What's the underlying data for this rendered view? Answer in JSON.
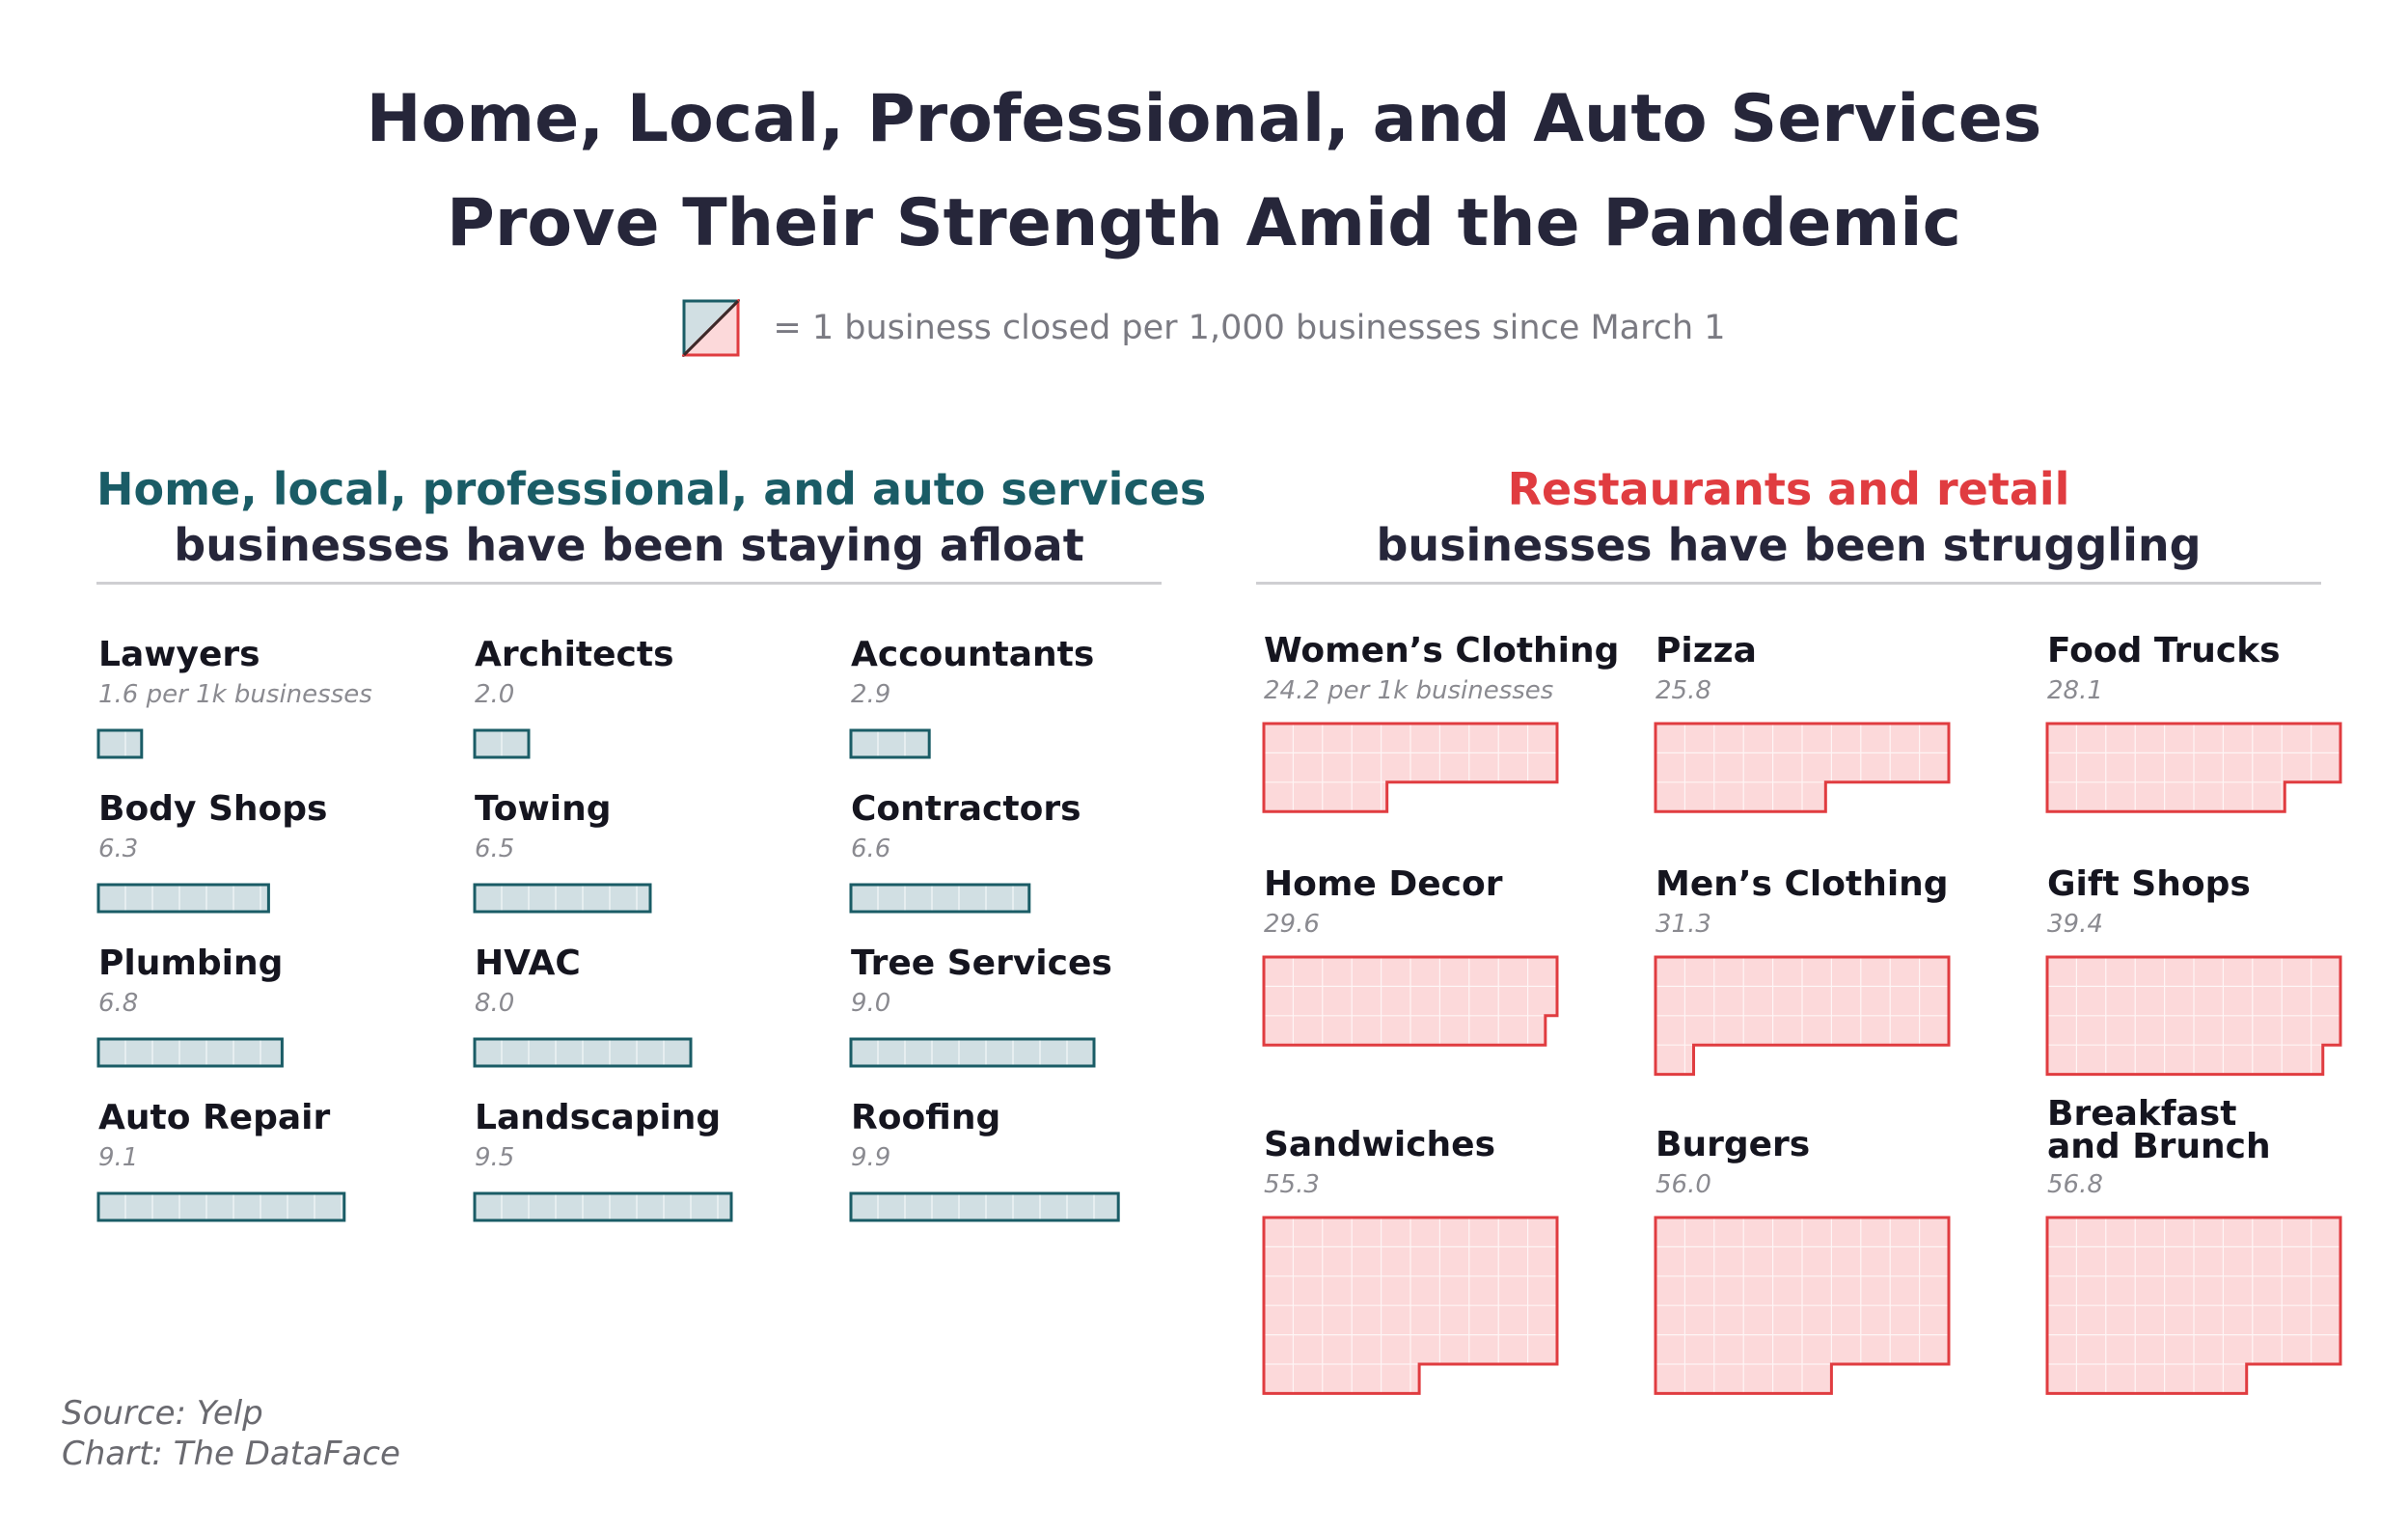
{
  "title": {
    "line1": "Home, Local, Professional, and Auto Services",
    "line2": "Prove Their Strength Amid the Pandemic"
  },
  "legend": {
    "icon": "half-teal-half-red-square-icon",
    "text": "= 1 business closed per 1,000 businesses since March 1"
  },
  "colors": {
    "teal_stroke": "#1a5c66",
    "teal_fill": "#d1dfe3",
    "red_stroke": "#e03c40",
    "red_fill": "#fcd9da",
    "title": "#26263a"
  },
  "left_panel": {
    "heading_line1": "Home, local, professional, and auto services",
    "heading_line2": "businesses have been staying afloat"
  },
  "right_panel": {
    "heading_line1": "Restaurants and retail",
    "heading_line2": "businesses have been struggling"
  },
  "chart_data": {
    "type": "waffle",
    "unit": "1 business closed per 1,000 businesses since March 1",
    "unit_suffix": " per 1k businesses",
    "groups": [
      {
        "name": "Home, local, professional, and auto services",
        "status": "staying afloat",
        "categories": [
          {
            "label": "Lawyers",
            "value": 1.6
          },
          {
            "label": "Architects",
            "value": 2.0
          },
          {
            "label": "Accountants",
            "value": 2.9
          },
          {
            "label": "Body Shops",
            "value": 6.3
          },
          {
            "label": "Towing",
            "value": 6.5
          },
          {
            "label": "Contractors",
            "value": 6.6
          },
          {
            "label": "Plumbing",
            "value": 6.8
          },
          {
            "label": "HVAC",
            "value": 8.0
          },
          {
            "label": "Tree Services",
            "value": 9.0
          },
          {
            "label": "Auto Repair",
            "value": 9.1
          },
          {
            "label": "Landscaping",
            "value": 9.5
          },
          {
            "label": "Roofing",
            "value": 9.9
          }
        ]
      },
      {
        "name": "Restaurants and retail",
        "status": "struggling",
        "categories": [
          {
            "label": "Women’s Clothing",
            "value": 24.2
          },
          {
            "label": "Pizza",
            "value": 25.8
          },
          {
            "label": "Food Trucks",
            "value": 28.1
          },
          {
            "label": "Home Decor",
            "value": 29.6
          },
          {
            "label": "Men’s Clothing",
            "value": 31.3
          },
          {
            "label": "Gift Shops",
            "value": 39.4
          },
          {
            "label": "Sandwiches",
            "value": 55.3
          },
          {
            "label": "Burgers",
            "value": 56.0
          },
          {
            "label": "Breakfast and Brunch",
            "value": 56.8
          }
        ]
      }
    ]
  },
  "source": {
    "line1": "Source: Yelp",
    "line2": "Chart: The DataFace"
  }
}
